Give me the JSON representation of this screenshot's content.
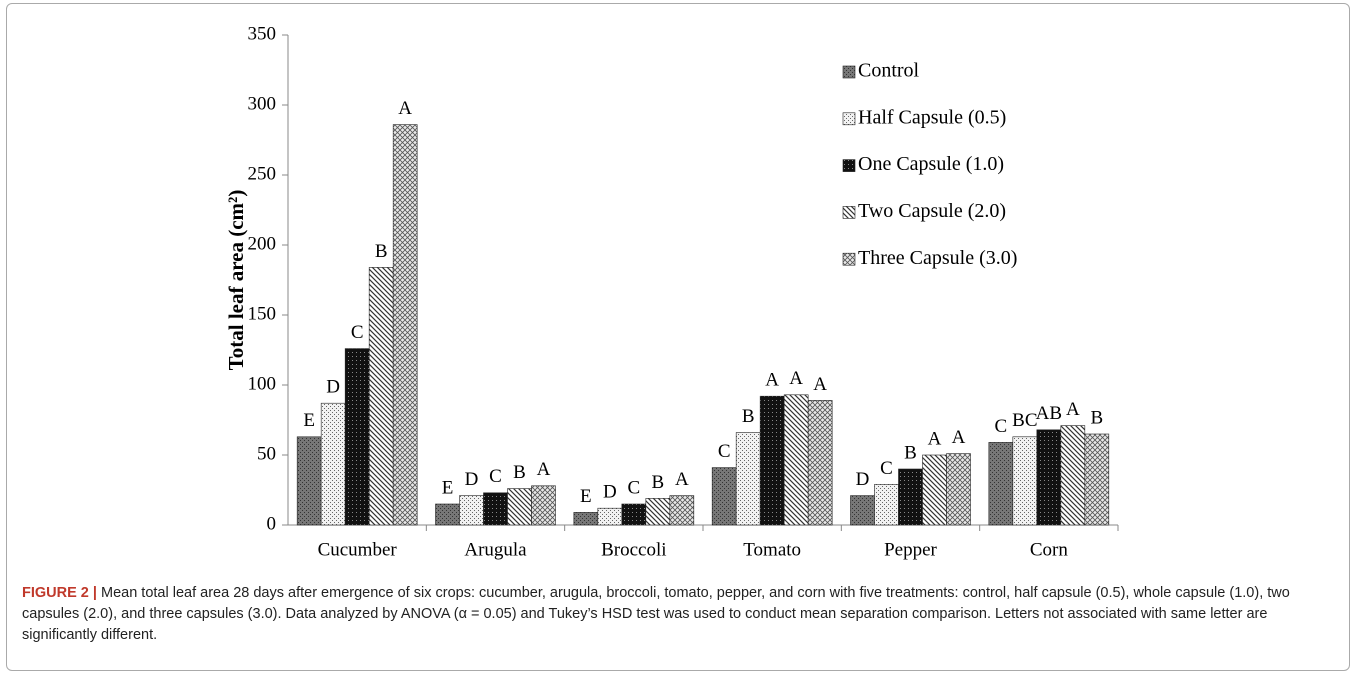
{
  "chart_data": {
    "type": "bar",
    "y_label": "Total leaf area (cm²)",
    "categories": [
      "Cucumber",
      "Arugula",
      "Broccoli",
      "Tomato",
      "Pepper",
      "Corn"
    ],
    "ylim": [
      0,
      350
    ],
    "yticks": [
      0,
      50,
      100,
      150,
      200,
      250,
      300,
      350
    ],
    "legend": "upper right",
    "series": [
      {
        "name": "Control",
        "color": "#666666",
        "values": [
          63,
          15,
          9,
          41,
          21,
          59
        ],
        "labels": [
          "E",
          "E",
          "E",
          "C",
          "D",
          "C"
        ]
      },
      {
        "name": "Half Capsule (0.5)",
        "color": "#e6e6e6",
        "values": [
          87,
          21,
          12,
          66,
          29,
          63
        ],
        "labels": [
          "D",
          "D",
          "D",
          "B",
          "C",
          "BC"
        ]
      },
      {
        "name": "One Capsule (1.0)",
        "color": "#111111",
        "values": [
          126,
          23,
          15,
          92,
          40,
          68
        ],
        "labels": [
          "C",
          "C",
          "C",
          "A",
          "B",
          "AB"
        ]
      },
      {
        "name": "Two Capsule (2.0)",
        "color": "#cccccc",
        "values": [
          184,
          26,
          19,
          93,
          50,
          71
        ],
        "labels": [
          "B",
          "B",
          "B",
          "A",
          "A",
          "A"
        ]
      },
      {
        "name": "Three Capsule (3.0)",
        "color": "#d9d9d9",
        "values": [
          286,
          28,
          21,
          89,
          51,
          65
        ],
        "labels": [
          "A",
          "A",
          "A",
          "A",
          "A",
          "B"
        ]
      }
    ]
  },
  "caption": {
    "label": "FIGURE 2 |",
    "text": "Mean total leaf area 28 days after emergence of six crops: cucumber, arugula, broccoli, tomato, pepper, and corn with five treatments: control, half capsule (0.5), whole capsule (1.0), two capsules (2.0), and three capsules (3.0). Data analyzed by ANOVA (α = 0.05) and Tukey’s HSD test was used to conduct mean separation comparison. Letters not associated with same letter are significantly different."
  }
}
